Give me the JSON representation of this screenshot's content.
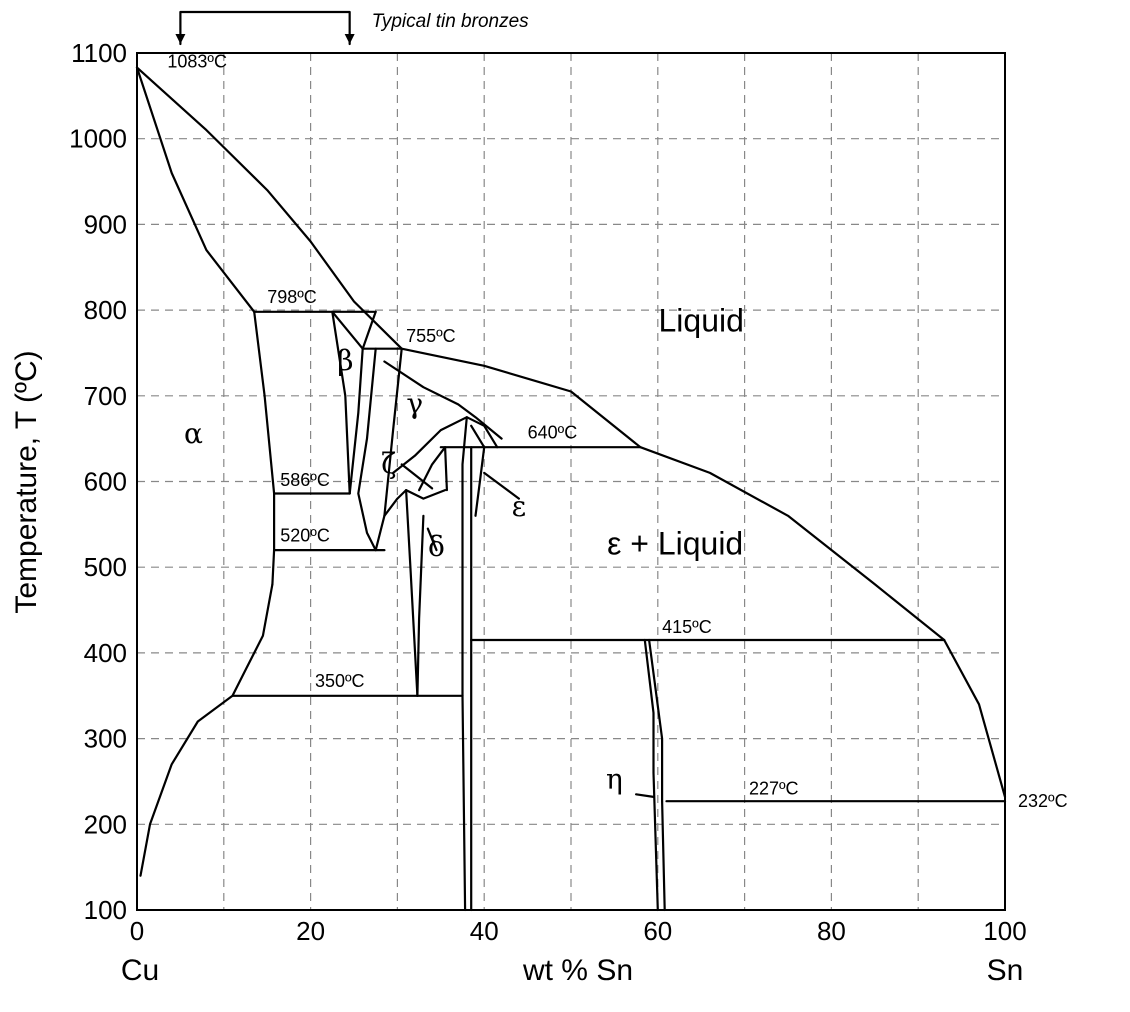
{
  "chart_data": {
    "type": "phase-diagram",
    "title": "",
    "xlabel": "wt % Sn",
    "ylabel": "Temperature, T    (ºC)",
    "xlim": [
      0,
      100
    ],
    "ylim": [
      100,
      1100
    ],
    "x_ticks": [
      0,
      20,
      40,
      60,
      80,
      100
    ],
    "x_tick_labels": [
      "0",
      "20",
      "40",
      "60",
      "80",
      "100"
    ],
    "y_ticks": [
      100,
      200,
      300,
      400,
      500,
      600,
      700,
      800,
      900,
      1000,
      1100
    ],
    "y_tick_labels": [
      "100",
      "200",
      "300",
      "400",
      "500",
      "600",
      "700",
      "800",
      "900",
      "1000",
      "1100"
    ],
    "x_grid": [
      10,
      20,
      30,
      40,
      50,
      60,
      70,
      80,
      90
    ],
    "y_grid": [
      200,
      300,
      400,
      500,
      600,
      700,
      800,
      900,
      1000
    ],
    "grid": true,
    "end_labels": {
      "left": "Cu",
      "right": "Sn"
    },
    "bronze_range": {
      "label": "Typical tin bronzes",
      "from": 5,
      "to": 24.5
    },
    "temperature_labels": [
      {
        "text": "1083ºC",
        "x": 3.5,
        "y": 1083
      },
      {
        "text": "798ºC",
        "x": 15,
        "y": 808
      },
      {
        "text": "755ºC",
        "x": 31,
        "y": 763
      },
      {
        "text": "640ºC",
        "x": 45,
        "y": 650
      },
      {
        "text": "586ºC",
        "x": 16.5,
        "y": 595
      },
      {
        "text": "520ºC",
        "x": 16.5,
        "y": 530
      },
      {
        "text": "350ºC",
        "x": 20.5,
        "y": 360
      },
      {
        "text": "415ºC",
        "x": 60.5,
        "y": 423
      },
      {
        "text": "227ºC",
        "x": 70.5,
        "y": 235
      },
      {
        "text": "232ºC",
        "x": 101.5,
        "y": 220
      }
    ],
    "phase_labels": [
      {
        "text": "α",
        "x": 6.5,
        "y": 645
      },
      {
        "text": "β",
        "x": 24,
        "y": 730
      },
      {
        "text": "γ",
        "x": 32,
        "y": 680
      },
      {
        "text": "ζ",
        "x": 29,
        "y": 610
      },
      {
        "text": "δ",
        "x": 34.5,
        "y": 513
      },
      {
        "text": "ε",
        "x": 44,
        "y": 560
      },
      {
        "text": "η",
        "x": 55,
        "y": 242
      }
    ],
    "region_labels": [
      {
        "text": "Liquid",
        "x": 65,
        "y": 775
      },
      {
        "text": "ε + Liquid",
        "x": 62,
        "y": 515
      }
    ],
    "phase_curves": [
      {
        "name": "liquidus-upper",
        "points": [
          [
            0,
            1083
          ],
          [
            8,
            1010
          ],
          [
            15,
            940
          ],
          [
            20,
            880
          ],
          [
            25,
            810
          ],
          [
            30.5,
            755
          ]
        ]
      },
      {
        "name": "alpha-solidus",
        "points": [
          [
            0,
            1083
          ],
          [
            4,
            960
          ],
          [
            8,
            870
          ],
          [
            13.5,
            798
          ]
        ]
      },
      {
        "name": "liquidus-lower",
        "points": [
          [
            30.5,
            755
          ],
          [
            40,
            735
          ],
          [
            50,
            705
          ],
          [
            58,
            640
          ],
          [
            66,
            610
          ],
          [
            75,
            560
          ],
          [
            85,
            480
          ],
          [
            93,
            415
          ],
          [
            97,
            340
          ],
          [
            100,
            232
          ]
        ]
      },
      {
        "name": "isotherm-798",
        "points": [
          [
            13.5,
            798
          ],
          [
            27.5,
            798
          ]
        ]
      },
      {
        "name": "isotherm-755",
        "points": [
          [
            26,
            755
          ],
          [
            30.5,
            755
          ]
        ]
      },
      {
        "name": "isotherm-640",
        "points": [
          [
            35,
            640
          ],
          [
            58,
            640
          ]
        ]
      },
      {
        "name": "isotherm-586",
        "points": [
          [
            15.8,
            586
          ],
          [
            24.5,
            586
          ]
        ]
      },
      {
        "name": "isotherm-520",
        "points": [
          [
            15.8,
            520
          ],
          [
            28.5,
            520
          ]
        ]
      },
      {
        "name": "isotherm-350",
        "points": [
          [
            11,
            350
          ],
          [
            37.5,
            350
          ]
        ]
      },
      {
        "name": "isotherm-415",
        "points": [
          [
            38.5,
            415
          ],
          [
            93,
            415
          ]
        ]
      },
      {
        "name": "isotherm-227",
        "points": [
          [
            61,
            227
          ],
          [
            100,
            227
          ]
        ]
      },
      {
        "name": "alpha-boundary-right",
        "points": [
          [
            13.5,
            798
          ],
          [
            14.7,
            700
          ],
          [
            15.8,
            586
          ],
          [
            15.8,
            520
          ],
          [
            15.6,
            480
          ]
        ]
      },
      {
        "name": "alpha-solvus",
        "points": [
          [
            15.6,
            480
          ],
          [
            14.5,
            420
          ],
          [
            12.5,
            380
          ],
          [
            11,
            350
          ],
          [
            7,
            320
          ],
          [
            4,
            270
          ],
          [
            1.5,
            200
          ],
          [
            0.4,
            140
          ]
        ]
      },
      {
        "name": "beta-left",
        "points": [
          [
            22.5,
            798
          ],
          [
            24,
            700
          ],
          [
            24.5,
            586
          ]
        ]
      },
      {
        "name": "beta-right",
        "points": [
          [
            26,
            755
          ],
          [
            25.5,
            680
          ],
          [
            24.5,
            586
          ]
        ]
      },
      {
        "name": "beta-liquid-boundary",
        "points": [
          [
            22.5,
            798
          ],
          [
            26,
            755
          ]
        ]
      },
      {
        "name": "gamma-left",
        "points": [
          [
            27.5,
            798
          ],
          [
            26,
            755
          ]
        ]
      },
      {
        "name": "gamma-boundary-1",
        "points": [
          [
            27.5,
            755
          ],
          [
            26.5,
            650
          ],
          [
            25.5,
            586
          ],
          [
            26.5,
            540
          ],
          [
            27.5,
            520
          ]
        ]
      },
      {
        "name": "gamma-boundary-2",
        "points": [
          [
            30.5,
            755
          ],
          [
            29.5,
            660
          ],
          [
            28.5,
            560
          ],
          [
            27.5,
            520
          ]
        ]
      },
      {
        "name": "gamma-epsilon-curve",
        "points": [
          [
            28.5,
            740
          ],
          [
            33,
            710
          ],
          [
            37,
            690
          ],
          [
            39,
            675
          ],
          [
            42,
            650
          ]
        ]
      },
      {
        "name": "zeta-dome",
        "points": [
          [
            29.5,
            610
          ],
          [
            32,
            630
          ],
          [
            35,
            660
          ],
          [
            38,
            675
          ],
          [
            40,
            665
          ],
          [
            41.5,
            640
          ]
        ]
      },
      {
        "name": "zeta-inner",
        "points": [
          [
            32.5,
            590
          ],
          [
            34,
            620
          ],
          [
            35.5,
            640
          ],
          [
            35.7,
            590
          ]
        ]
      },
      {
        "name": "delta-left",
        "points": [
          [
            31,
            590
          ],
          [
            31.5,
            500
          ],
          [
            32.3,
            350
          ]
        ]
      },
      {
        "name": "delta-right",
        "points": [
          [
            32.3,
            350
          ],
          [
            32.5,
            440
          ],
          [
            33,
            560
          ]
        ]
      },
      {
        "name": "delta-top",
        "points": [
          [
            28.5,
            560
          ],
          [
            30,
            580
          ],
          [
            31,
            590
          ],
          [
            33,
            580
          ],
          [
            35.5,
            590
          ]
        ]
      },
      {
        "name": "epsilon-left",
        "points": [
          [
            38,
            675
          ],
          [
            37.5,
            620
          ],
          [
            37.5,
            500
          ],
          [
            37.5,
            350
          ],
          [
            37.8,
            100
          ]
        ]
      },
      {
        "name": "epsilon-right",
        "points": [
          [
            38.5,
            640
          ],
          [
            38.5,
            500
          ],
          [
            38.5,
            415
          ],
          [
            38.5,
            100
          ]
        ]
      },
      {
        "name": "epsilon-curve",
        "points": [
          [
            38.5,
            665
          ],
          [
            40,
            640
          ],
          [
            39.5,
            600
          ],
          [
            39,
            560
          ]
        ]
      },
      {
        "name": "eta-left",
        "points": [
          [
            58.5,
            415
          ],
          [
            59.5,
            330
          ],
          [
            59.5,
            260
          ],
          [
            60,
            100
          ]
        ]
      },
      {
        "name": "eta-right",
        "points": [
          [
            59,
            415
          ],
          [
            60.5,
            300
          ],
          [
            60.5,
            227
          ],
          [
            60.8,
            100
          ]
        ]
      },
      {
        "name": "eta-pointer",
        "points": [
          [
            57.5,
            235
          ],
          [
            59.5,
            232
          ]
        ]
      },
      {
        "name": "zeta-pointer",
        "points": [
          [
            30.5,
            620
          ],
          [
            34,
            592
          ]
        ]
      },
      {
        "name": "delta-pointer",
        "points": [
          [
            33.5,
            545
          ],
          [
            34.5,
            520
          ]
        ]
      },
      {
        "name": "epsilon-pointer",
        "points": [
          [
            40,
            610
          ],
          [
            44,
            580
          ]
        ]
      }
    ]
  }
}
